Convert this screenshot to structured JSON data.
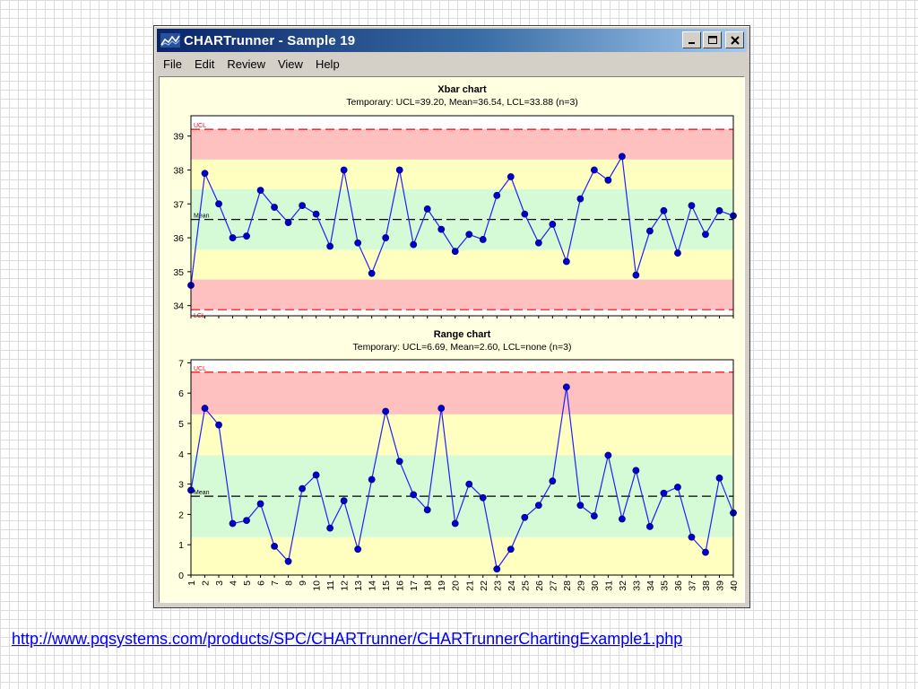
{
  "window": {
    "title": "CHARTrunner - Sample 19",
    "icon": "chart-app-icon",
    "controls": [
      "minimize-icon",
      "maximize-icon",
      "close-icon"
    ]
  },
  "menu": [
    "File",
    "Edit",
    "Review",
    "View",
    "Help"
  ],
  "colors": {
    "title_start": "#0a246a",
    "title_end": "#a6caf0",
    "zone_red": "#ffc0c0",
    "zone_yellow": "#ffffc0",
    "zone_green": "#d4fad6",
    "series_line": "#2020ff",
    "point_fill": "#0000cc",
    "limit_line": "#ff0000",
    "mean_line": "#000000",
    "link": "#0000ee"
  },
  "chart_data": [
    {
      "type": "line",
      "title": "Xbar chart",
      "subtitle": "Temporary: UCL=39.20, Mean=36.54, LCL=33.88 (n=3)",
      "ylim": [
        33.7,
        39.6
      ],
      "yticks": [
        34,
        35,
        36,
        37,
        38,
        39
      ],
      "ucl": 39.2,
      "mean": 36.54,
      "lcl": 33.88,
      "limit_labels": {
        "ucl": "UCL",
        "mean": "Mean",
        "lcl": "LCL"
      },
      "zones": [
        {
          "from": 33.88,
          "to": 34.77,
          "color": "red"
        },
        {
          "from": 34.77,
          "to": 35.65,
          "color": "yellow"
        },
        {
          "from": 35.65,
          "to": 37.43,
          "color": "green"
        },
        {
          "from": 37.43,
          "to": 38.31,
          "color": "yellow"
        },
        {
          "from": 38.31,
          "to": 39.2,
          "color": "red"
        }
      ],
      "x": [
        1,
        2,
        3,
        4,
        5,
        6,
        7,
        8,
        9,
        10,
        11,
        12,
        13,
        14,
        15,
        16,
        17,
        18,
        19,
        20,
        21,
        22,
        23,
        24,
        25,
        26,
        27,
        28,
        29,
        30,
        31,
        32,
        33,
        34,
        35,
        36,
        37,
        38,
        39,
        40
      ],
      "values": [
        34.6,
        37.9,
        37.0,
        36.0,
        36.05,
        37.4,
        36.9,
        36.45,
        36.95,
        36.7,
        35.75,
        38.0,
        35.85,
        34.95,
        36.0,
        38.0,
        35.8,
        36.85,
        36.25,
        35.6,
        36.1,
        35.95,
        37.25,
        37.8,
        36.7,
        35.85,
        36.4,
        35.3,
        37.15,
        38.0,
        37.7,
        38.4,
        34.9,
        36.2,
        36.8,
        35.55,
        36.95,
        36.1,
        36.8,
        36.65
      ],
      "grid": false
    },
    {
      "type": "line",
      "title": "Range chart",
      "subtitle": "Temporary: UCL=6.69, Mean=2.60, LCL=none (n=3)",
      "ylim": [
        0,
        7.1
      ],
      "yticks": [
        0,
        1,
        2,
        3,
        4,
        5,
        6,
        7
      ],
      "ucl": 6.69,
      "mean": 2.6,
      "lcl": null,
      "limit_labels": {
        "ucl": "UCL",
        "mean": "Mean"
      },
      "zones": [
        {
          "from": 0,
          "to": 1.25,
          "color": "yellow"
        },
        {
          "from": 1.25,
          "to": 3.95,
          "color": "green"
        },
        {
          "from": 3.95,
          "to": 5.3,
          "color": "yellow"
        },
        {
          "from": 5.3,
          "to": 6.69,
          "color": "red"
        }
      ],
      "x": [
        1,
        2,
        3,
        4,
        5,
        6,
        7,
        8,
        9,
        10,
        11,
        12,
        13,
        14,
        15,
        16,
        17,
        18,
        19,
        20,
        21,
        22,
        23,
        24,
        25,
        26,
        27,
        28,
        29,
        30,
        31,
        32,
        33,
        34,
        35,
        36,
        37,
        38,
        39,
        40
      ],
      "values": [
        2.8,
        5.5,
        4.95,
        1.7,
        1.8,
        2.35,
        0.95,
        0.45,
        2.85,
        3.3,
        1.55,
        2.45,
        0.85,
        3.15,
        5.4,
        3.75,
        2.65,
        2.15,
        5.5,
        1.7,
        3.0,
        2.55,
        0.2,
        0.85,
        1.9,
        2.3,
        3.1,
        6.2,
        2.3,
        1.95,
        3.95,
        1.85,
        3.45,
        1.6,
        2.7,
        2.9,
        1.25,
        0.75,
        3.2,
        2.05
      ],
      "grid": false
    }
  ],
  "footer": {
    "link": "http://www.pqsystems.com/products/SPC/CHARTrunner/CHARTrunnerChartingExample1.php"
  }
}
